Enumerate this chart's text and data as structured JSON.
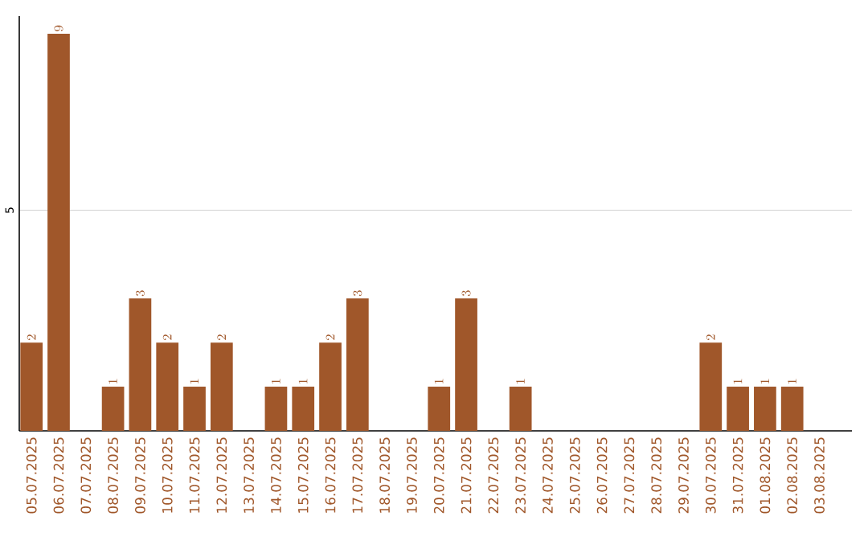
{
  "chart_data": {
    "type": "bar",
    "categories": [
      "05.07.2025",
      "06.07.2025",
      "07.07.2025",
      "08.07.2025",
      "09.07.2025",
      "10.07.2025",
      "11.07.2025",
      "12.07.2025",
      "13.07.2025",
      "14.07.2025",
      "15.07.2025",
      "16.07.2025",
      "17.07.2025",
      "18.07.2025",
      "19.07.2025",
      "20.07.2025",
      "21.07.2025",
      "22.07.2025",
      "23.07.2025",
      "24.07.2025",
      "25.07.2025",
      "26.07.2025",
      "27.07.2025",
      "28.07.2025",
      "29.07.2025",
      "30.07.2025",
      "31.07.2025",
      "01.08.2025",
      "02.08.2025",
      "03.08.2025"
    ],
    "values": [
      2,
      9,
      null,
      1,
      3,
      2,
      1,
      2,
      null,
      1,
      1,
      2,
      3,
      null,
      null,
      1,
      3,
      null,
      1,
      null,
      null,
      null,
      null,
      null,
      null,
      2,
      1,
      1,
      1,
      null
    ],
    "color": "#a0572a",
    "ylim": [
      0,
      9.4
    ],
    "yticks": [
      5
    ],
    "grid": "y",
    "data_labels": true
  }
}
